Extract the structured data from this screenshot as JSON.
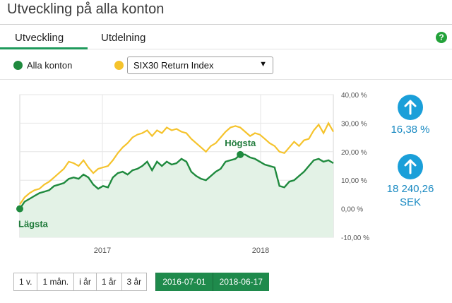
{
  "page": {
    "title": "Utveckling på alla konton"
  },
  "tabs": [
    {
      "label": "Utveckling",
      "active": true
    },
    {
      "label": "Utdelning",
      "active": false
    }
  ],
  "help_icon": {
    "glyph": "?",
    "color": "#23a23a"
  },
  "legend": {
    "series1_label": "Alla konton",
    "series1_color": "#1f8a3e",
    "series2_color": "#f5c32c",
    "compare_select": {
      "value": "SIX30 Return Index",
      "arrow": "▼"
    }
  },
  "chart_data": {
    "type": "line",
    "x_ticks": [
      "2017",
      "2018"
    ],
    "y_ticks": [
      "40,00 %",
      "30,00 %",
      "20,00 %",
      "10,00 %",
      "0,00 %",
      "-10,00 %"
    ],
    "ylim": [
      -10,
      40
    ],
    "grid": true,
    "annotations": {
      "high": "Högsta",
      "low": "Lägsta"
    },
    "series": [
      {
        "name": "Alla konton",
        "color": "#1f8a3e",
        "values": [
          0,
          2.5,
          3.5,
          4.5,
          5.5,
          6,
          6.5,
          8,
          8.5,
          9,
          10.5,
          11,
          10.5,
          12,
          11,
          8.5,
          7,
          8,
          7.5,
          11,
          12.5,
          13,
          12,
          13.5,
          14,
          15,
          16.5,
          13.5,
          16.5,
          15,
          16.5,
          15.5,
          16,
          17.5,
          16.5,
          13,
          11.5,
          10.5,
          10,
          11.5,
          13,
          14,
          16.5,
          17,
          17.5,
          19,
          19,
          18,
          17.5,
          16.5,
          15.5,
          15,
          14.5,
          8,
          7.5,
          9.5,
          10,
          11.5,
          13,
          15,
          17,
          17.5,
          16.5,
          17,
          16
        ]
      },
      {
        "name": "SIX30 Return Index",
        "color": "#f5c32c",
        "values": [
          1.5,
          4,
          5.5,
          6.5,
          7,
          8.5,
          9.5,
          11,
          12.5,
          14,
          16.5,
          16,
          15,
          17,
          14.5,
          12.5,
          14,
          14.5,
          15,
          17,
          19.5,
          21.5,
          23,
          25,
          26,
          26.5,
          27.5,
          25.5,
          27.5,
          26.5,
          28.5,
          27.5,
          28,
          27,
          26.5,
          24.5,
          23,
          21.5,
          20,
          22,
          23,
          25,
          27,
          28.5,
          29,
          28.5,
          27,
          25.5,
          26.5,
          26,
          24.5,
          23,
          22,
          20,
          19.5,
          21.5,
          23.5,
          22,
          24,
          24.5,
          27.5,
          29.5,
          26.5,
          30,
          27
        ]
      }
    ]
  },
  "stats": {
    "percent": "16,38 %",
    "amount_line1": "18 240,26",
    "amount_line2": "SEK",
    "button_color": "#1a9fd9"
  },
  "range_buttons": [
    "1 v.",
    "1 mån.",
    "i år",
    "1 år",
    "3 år"
  ],
  "date_range": {
    "start": "2016-07-01",
    "end": "2018-06-17"
  }
}
